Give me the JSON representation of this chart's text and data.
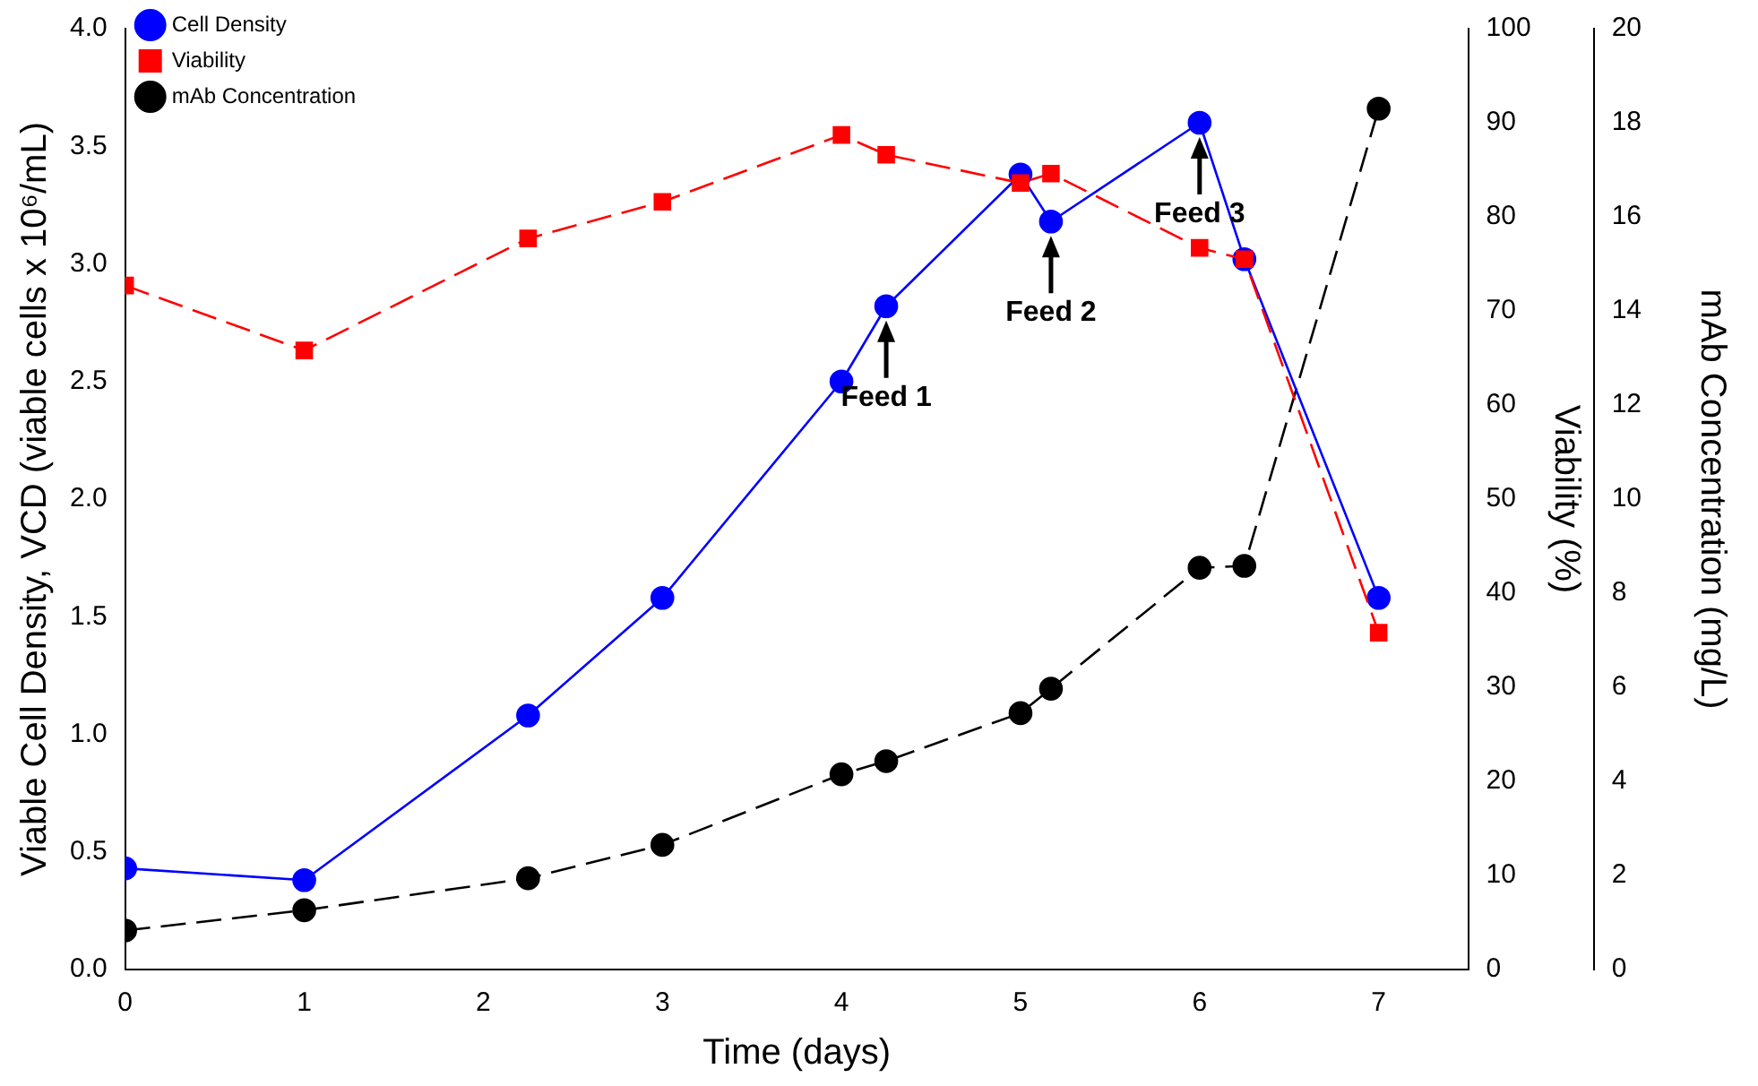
{
  "chart_data": {
    "type": "line",
    "xlabel": "Time (days)",
    "ylabel": "Viable Cell Density, VCD (viable cells x 10⁶/mL)",
    "y2label": "Viability (%)",
    "y3label": "mAb Concentration (mg/L)",
    "xlim": [
      0,
      7.5
    ],
    "xticks": [
      0,
      1,
      2,
      3,
      4,
      5,
      6,
      7
    ],
    "ylim": [
      0,
      4
    ],
    "yticks": [
      {
        "value": 0,
        "label": "0.0"
      },
      {
        "value": 0.5,
        "label": "0.5"
      },
      {
        "value": 1,
        "label": "1.0"
      },
      {
        "value": 1.5,
        "label": "1.5"
      },
      {
        "value": 2,
        "label": "2.0"
      },
      {
        "value": 2.5,
        "label": "2.5"
      },
      {
        "value": 3,
        "label": "3.0"
      },
      {
        "value": 3.5,
        "label": "3.5"
      },
      {
        "value": 4,
        "label": "4.0"
      }
    ],
    "y2lim": [
      0,
      100
    ],
    "y2ticks": [
      0,
      10,
      20,
      30,
      40,
      50,
      60,
      70,
      80,
      90,
      100
    ],
    "y3lim": [
      0,
      20
    ],
    "y3ticks": [
      0,
      2,
      4,
      6,
      8,
      10,
      12,
      14,
      16,
      18,
      20
    ],
    "x": [
      0,
      1,
      2.25,
      3,
      4,
      4.25,
      5,
      5.17,
      6,
      6.25,
      7
    ],
    "series": [
      {
        "name": "Cell Density",
        "color": "#0000ff",
        "marker": "circle",
        "line_style": "solid",
        "values": [
          0.43,
          0.38,
          1.08,
          1.58,
          2.5,
          2.82,
          3.38,
          3.18,
          3.6,
          3.02,
          1.58
        ]
      },
      {
        "name": "Viability",
        "color": "#ff0000",
        "marker": "square",
        "line_style": "dashed",
        "axis": "y2",
        "values": [
          72.7,
          65.8,
          77.7,
          81.6,
          88.7,
          86.6,
          83.6,
          84.6,
          76.7,
          75.5,
          35.8
        ]
      },
      {
        "name": "mAb Concentration",
        "color": "#000000",
        "marker": "circle",
        "line_style": "dashed",
        "axis": "y3",
        "values": [
          0.83,
          1.26,
          1.94,
          2.65,
          4.15,
          4.43,
          5.45,
          5.97,
          8.54,
          8.58,
          18.3
        ]
      }
    ],
    "annotations": [
      {
        "text": "Feed 1",
        "x": 4.25,
        "y": 2.82
      },
      {
        "text": "Feed 2",
        "x": 5.17,
        "y": 3.18
      },
      {
        "text": "Feed 3",
        "x": 6,
        "y": 3.6
      }
    ],
    "grid": false,
    "legend": "top left"
  }
}
